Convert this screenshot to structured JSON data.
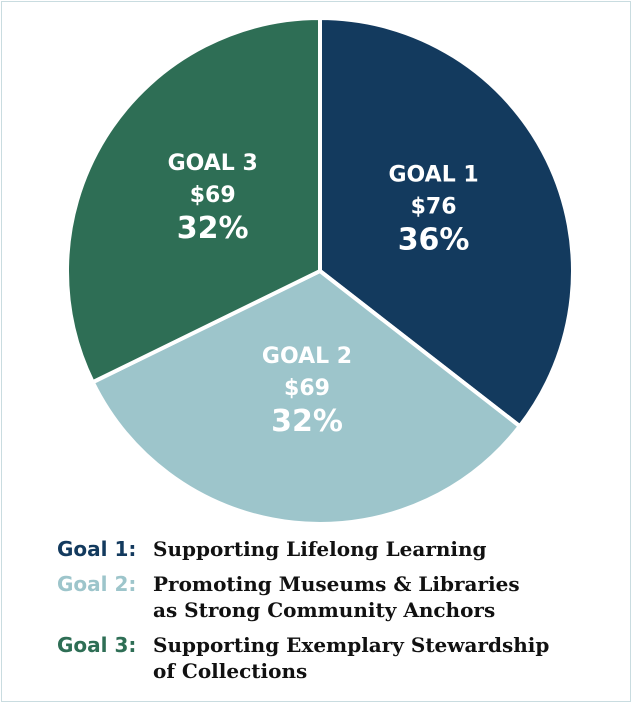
{
  "chart_data": {
    "type": "pie",
    "slices": [
      {
        "goal": "GOAL 1",
        "value": 76,
        "amount": "$76",
        "percent": "36%",
        "color": "#133a5e"
      },
      {
        "goal": "GOAL 2",
        "value": 69,
        "amount": "$69",
        "percent": "32%",
        "color": "#9dc5cb"
      },
      {
        "goal": "GOAL 3",
        "value": 69,
        "amount": "$69",
        "percent": "32%",
        "color": "#2e6e55"
      }
    ],
    "legend": [
      {
        "key": "Goal 1:",
        "text": "Supporting Lifelong Learning",
        "color": "#133a5e"
      },
      {
        "key": "Goal 2:",
        "text": "Promoting Museums & Libraries\nas Strong Community Anchors",
        "color": "#9dc5cb"
      },
      {
        "key": "Goal 3:",
        "text": "Supporting Exemplary Stewardship\nof Collections",
        "color": "#2e6e55"
      }
    ]
  }
}
